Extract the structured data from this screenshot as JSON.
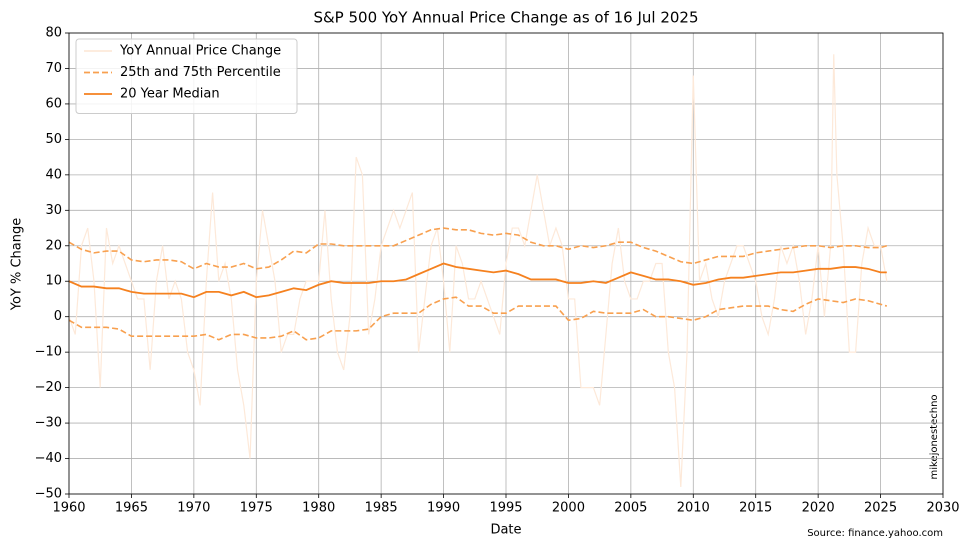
{
  "chart_data": {
    "type": "line",
    "title": "S&P 500 YoY Annual Price Change as of 16 Jul 2025",
    "x_label": "Date",
    "y_label": "YoY % Change",
    "watermark": "mikejonestechno",
    "source": "Source: finance.yahoo.com",
    "xlim": [
      1960,
      2030
    ],
    "xticks": [
      1960,
      1965,
      1970,
      1975,
      1980,
      1985,
      1990,
      1995,
      2000,
      2005,
      2010,
      2015,
      2020,
      2025,
      2030
    ],
    "ylim": [
      -50,
      80
    ],
    "yticks": [
      {
        "value": -50,
        "label": "−50"
      },
      {
        "value": -40,
        "label": "−40"
      },
      {
        "value": -30,
        "label": "−30"
      },
      {
        "value": -20,
        "label": "−20"
      },
      {
        "value": -10,
        "label": "−10"
      },
      0,
      10,
      20,
      30,
      40,
      50,
      60,
      70,
      80
    ],
    "grid": true,
    "legend": "upper left",
    "series": [
      {
        "name": "YoY Annual Price Change",
        "color": "#fde9d9",
        "style": "solid",
        "x": [
          1960,
          1960.5,
          1961,
          1961.5,
          1962,
          1962.5,
          1963,
          1963.5,
          1964,
          1964.5,
          1965,
          1965.5,
          1966,
          1966.5,
          1967,
          1967.5,
          1968,
          1968.5,
          1969,
          1969.5,
          1970,
          1970.5,
          1971,
          1971.5,
          1972,
          1972.5,
          1973,
          1973.5,
          1974,
          1974.5,
          1975,
          1975.5,
          1976,
          1976.5,
          1977,
          1977.5,
          1978,
          1978.5,
          1979,
          1979.5,
          1980,
          1980.5,
          1981,
          1981.5,
          1982,
          1982.5,
          1983,
          1983.5,
          1984,
          1984.5,
          1985,
          1985.5,
          1986,
          1986.5,
          1987,
          1987.5,
          1988,
          1988.5,
          1989,
          1989.5,
          1990,
          1990.5,
          1991,
          1991.5,
          1992,
          1992.5,
          1993,
          1993.5,
          1994,
          1994.5,
          1995,
          1995.5,
          1996,
          1996.5,
          1997,
          1997.5,
          1998,
          1998.5,
          1999,
          1999.5,
          2000,
          2000.5,
          2001,
          2001.5,
          2002,
          2002.5,
          2003,
          2003.5,
          2004,
          2004.5,
          2005,
          2005.5,
          2006,
          2006.5,
          2007,
          2007.5,
          2008,
          2008.5,
          2009,
          2009.5,
          2010,
          2010.5,
          2011,
          2011.5,
          2012,
          2012.5,
          2013,
          2013.5,
          2014,
          2014.5,
          2015,
          2015.5,
          2016,
          2016.5,
          2017,
          2017.5,
          2018,
          2018.5,
          2019,
          2019.5,
          2020,
          2020.5,
          2021,
          2021.25,
          2021.5,
          2022,
          2022.5,
          2023,
          2023.5,
          2024,
          2024.5,
          2025,
          2025.5
        ],
        "values": [
          0,
          -5,
          20,
          25,
          10,
          -20,
          25,
          15,
          20,
          15,
          10,
          5,
          5,
          -15,
          10,
          20,
          5,
          10,
          5,
          -10,
          -15,
          -25,
          10,
          35,
          10,
          15,
          5,
          -15,
          -25,
          -40,
          10,
          30,
          20,
          10,
          -10,
          -5,
          -5,
          5,
          10,
          10,
          10,
          30,
          5,
          -10,
          -15,
          0,
          45,
          40,
          -5,
          5,
          20,
          25,
          30,
          25,
          30,
          35,
          -10,
          5,
          20,
          25,
          10,
          -10,
          20,
          15,
          5,
          5,
          10,
          5,
          0,
          -5,
          15,
          25,
          25,
          20,
          30,
          40,
          30,
          20,
          25,
          20,
          5,
          5,
          -20,
          -20,
          -20,
          -25,
          -5,
          15,
          25,
          10,
          5,
          5,
          10,
          10,
          15,
          15,
          -10,
          -20,
          -48,
          -10,
          68,
          10,
          15,
          5,
          0,
          10,
          15,
          20,
          20,
          15,
          10,
          0,
          -5,
          5,
          20,
          15,
          20,
          10,
          -5,
          5,
          20,
          0,
          20,
          74,
          40,
          20,
          -10,
          -10,
          15,
          25,
          20,
          20,
          10
        ]
      },
      {
        "name": "25th and 75th Percentile",
        "color": "#f8a04f",
        "style": "dashed",
        "x": [
          1960,
          1961,
          1962,
          1963,
          1964,
          1965,
          1966,
          1967,
          1968,
          1969,
          1970,
          1971,
          1972,
          1973,
          1974,
          1975,
          1976,
          1977,
          1978,
          1979,
          1980,
          1981,
          1982,
          1983,
          1984,
          1985,
          1986,
          1987,
          1988,
          1989,
          1990,
          1991,
          1992,
          1993,
          1994,
          1995,
          1996,
          1997,
          1998,
          1999,
          2000,
          2001,
          2002,
          2003,
          2004,
          2005,
          2006,
          2007,
          2008,
          2009,
          2010,
          2011,
          2012,
          2013,
          2014,
          2015,
          2016,
          2017,
          2018,
          2019,
          2020,
          2021,
          2022,
          2023,
          2024,
          2025,
          2025.5
        ],
        "values": [
          21,
          19,
          18,
          18.5,
          18.5,
          16,
          15.5,
          16,
          16,
          15.5,
          13.5,
          15,
          14,
          14,
          15,
          13.5,
          14,
          16,
          18.5,
          18,
          20.5,
          20.5,
          20,
          20,
          20,
          20,
          20,
          21.5,
          23,
          24.5,
          25,
          24.5,
          24.5,
          23.5,
          23,
          23.5,
          23,
          21,
          20,
          20,
          19,
          20,
          19.5,
          20,
          21,
          21,
          19.5,
          18.5,
          17,
          15.5,
          15,
          16,
          17,
          17,
          17,
          18,
          18.5,
          19,
          19.5,
          20,
          20,
          19.5,
          20,
          20,
          19.5,
          19.5,
          20
        ]
      },
      {
        "name": "25th Percentile",
        "legend": false,
        "color": "#f8a04f",
        "style": "dashed",
        "x": [
          1960,
          1961,
          1962,
          1963,
          1964,
          1965,
          1966,
          1967,
          1968,
          1969,
          1970,
          1971,
          1972,
          1973,
          1974,
          1975,
          1976,
          1977,
          1978,
          1979,
          1980,
          1981,
          1982,
          1983,
          1984,
          1985,
          1986,
          1987,
          1988,
          1989,
          1990,
          1991,
          1992,
          1993,
          1994,
          1995,
          1996,
          1997,
          1998,
          1999,
          2000,
          2001,
          2002,
          2003,
          2004,
          2005,
          2006,
          2007,
          2008,
          2009,
          2010,
          2011,
          2012,
          2013,
          2014,
          2015,
          2016,
          2017,
          2018,
          2019,
          2020,
          2021,
          2022,
          2023,
          2024,
          2025,
          2025.5
        ],
        "values": [
          -1,
          -3,
          -3,
          -3,
          -3.5,
          -5.5,
          -5.5,
          -5.5,
          -5.5,
          -5.5,
          -5.5,
          -5,
          -6.5,
          -5,
          -5,
          -6,
          -6,
          -5.5,
          -4,
          -6.5,
          -6,
          -4,
          -4,
          -4,
          -3.5,
          0,
          1,
          1,
          1,
          3.5,
          5,
          5.5,
          3,
          3,
          1,
          1,
          3,
          3,
          3,
          3,
          -1,
          -0.5,
          1.5,
          1,
          1,
          1,
          2,
          0,
          0,
          -0.5,
          -1,
          0,
          2,
          2.5,
          3,
          3,
          3,
          2,
          1.5,
          3.5,
          5,
          4.5,
          4,
          5,
          4.5,
          3.5,
          3
        ]
      },
      {
        "name": "20 Year Median",
        "color": "#f5811f",
        "style": "solid",
        "x": [
          1960,
          1961,
          1962,
          1963,
          1964,
          1965,
          1966,
          1967,
          1968,
          1969,
          1970,
          1971,
          1972,
          1973,
          1974,
          1975,
          1976,
          1977,
          1978,
          1979,
          1980,
          1981,
          1982,
          1983,
          1984,
          1985,
          1986,
          1987,
          1988,
          1989,
          1990,
          1991,
          1992,
          1993,
          1994,
          1995,
          1996,
          1997,
          1998,
          1999,
          2000,
          2001,
          2002,
          2003,
          2004,
          2005,
          2006,
          2007,
          2008,
          2009,
          2010,
          2011,
          2012,
          2013,
          2014,
          2015,
          2016,
          2017,
          2018,
          2019,
          2020,
          2021,
          2022,
          2023,
          2024,
          2025,
          2025.5
        ],
        "values": [
          10,
          8.5,
          8.5,
          8,
          8,
          7,
          6.5,
          6.5,
          6.5,
          6.5,
          5.5,
          7,
          7,
          6,
          7,
          5.5,
          6,
          7,
          8,
          7.5,
          9,
          10,
          9.5,
          9.5,
          9.5,
          10,
          10,
          10.5,
          12,
          13.5,
          15,
          14,
          13.5,
          13,
          12.5,
          13,
          12,
          10.5,
          10.5,
          10.5,
          9.5,
          9.5,
          10,
          9.5,
          11,
          12.5,
          11.5,
          10.5,
          10.5,
          10,
          9,
          9.5,
          10.5,
          11,
          11,
          11.5,
          12,
          12.5,
          12.5,
          13,
          13.5,
          13.5,
          14,
          14,
          13.5,
          12.5,
          12.5
        ]
      }
    ]
  }
}
